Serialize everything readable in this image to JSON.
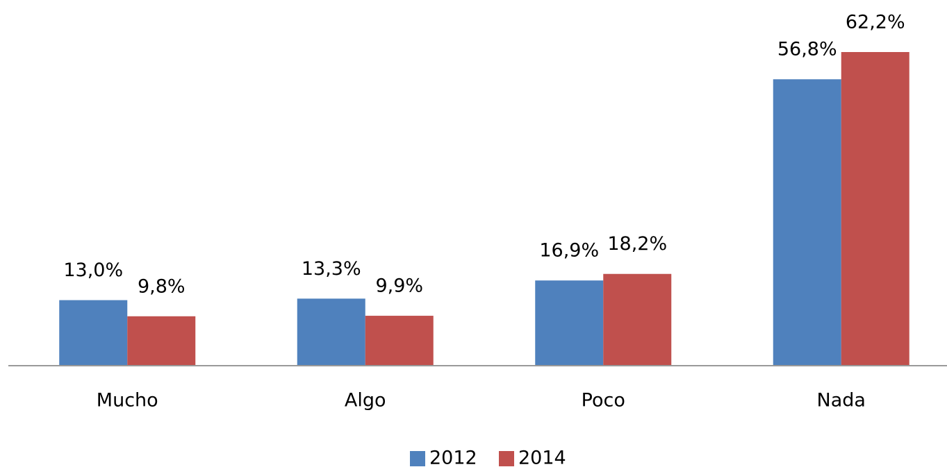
{
  "chart_data": {
    "type": "bar",
    "categories": [
      "Mucho",
      "Algo",
      "Poco",
      "Nada"
    ],
    "series": [
      {
        "name": "2012",
        "color": "#4f81bd",
        "values": [
          13.0,
          13.3,
          16.9,
          56.8
        ],
        "value_labels": [
          "13,0%",
          "13,3%",
          "16,9%",
          "56,8%"
        ]
      },
      {
        "name": "2014",
        "color": "#c0504d",
        "values": [
          9.8,
          9.9,
          18.2,
          62.2
        ],
        "value_labels": [
          "9,8%",
          "9,9%",
          "18,2%",
          "62,2%"
        ]
      }
    ],
    "legend": "bottom"
  }
}
